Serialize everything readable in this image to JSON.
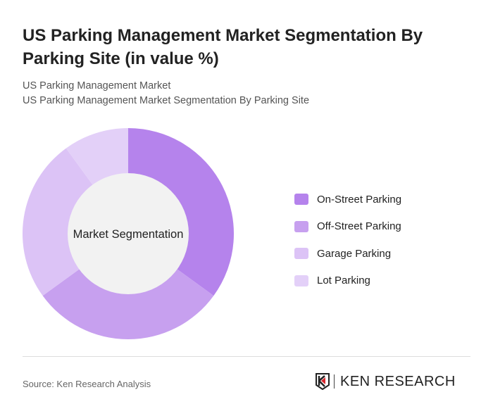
{
  "title": "US Parking Management Market Segmentation By Parking Site (in value %)",
  "subtitle1": "US Parking Management Market",
  "subtitle2": "US Parking Management Market Segmentation By Parking Site",
  "source": "Source: Ken Research Analysis",
  "logo_text": "KEN RESEARCH",
  "chart_data": {
    "type": "pie",
    "donut": true,
    "center_label": "Market Segmentation",
    "categories": [
      "On-Street Parking",
      "Off-Street Parking",
      "Garage Parking",
      "Lot Parking"
    ],
    "values": [
      35,
      30,
      25,
      10
    ],
    "colors": [
      "#b583ec",
      "#c7a0ef",
      "#dcc3f6",
      "#e3d0f8"
    ],
    "legend_position": "right"
  }
}
